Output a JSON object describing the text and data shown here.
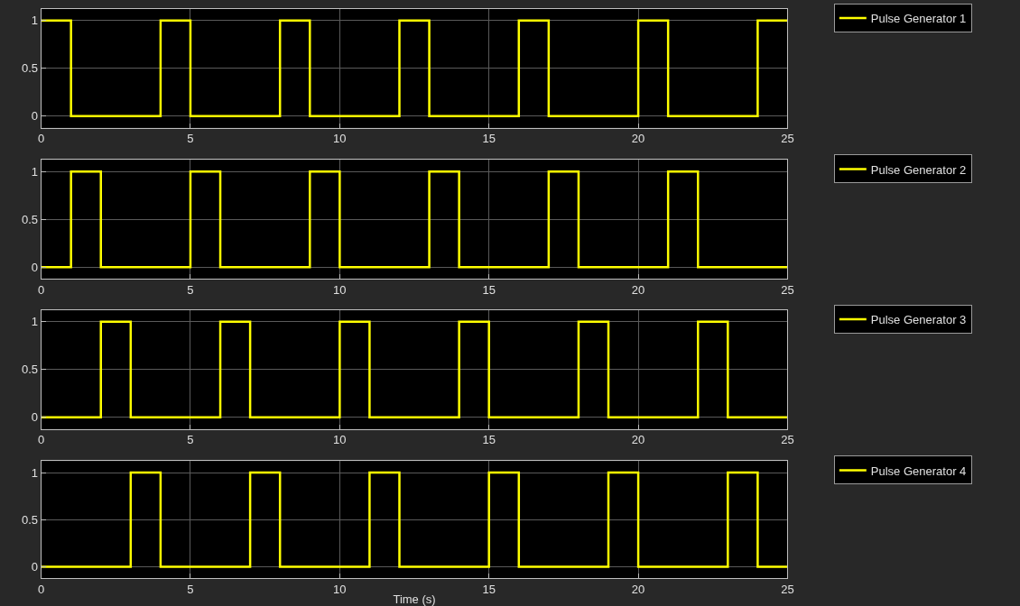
{
  "chart_data": [
    {
      "type": "step",
      "x": [
        0,
        1,
        4,
        5,
        8,
        9,
        12,
        13,
        16,
        17,
        20,
        21,
        24,
        25
      ],
      "xlim": [
        0,
        25
      ],
      "xticks": [
        0,
        5,
        10,
        15,
        20,
        25
      ],
      "ylim": [
        -0.12,
        1.12
      ],
      "yticks": [
        0,
        0.5,
        1
      ],
      "grid": true,
      "legend": "top right",
      "series": [
        {
          "name": "Pulse Generator 1",
          "color": "#ffff00",
          "values": [
            1,
            0,
            1,
            0,
            1,
            0,
            1,
            0,
            1,
            0,
            1,
            0,
            1,
            1
          ]
        }
      ]
    },
    {
      "type": "step",
      "x": [
        0,
        1,
        2,
        5,
        6,
        9,
        10,
        13,
        14,
        17,
        18,
        21,
        22,
        25
      ],
      "xlim": [
        0,
        25
      ],
      "xticks": [
        0,
        5,
        10,
        15,
        20,
        25
      ],
      "ylim": [
        -0.12,
        1.12
      ],
      "yticks": [
        0,
        0.5,
        1
      ],
      "grid": true,
      "legend": "top right",
      "series": [
        {
          "name": "Pulse Generator 2",
          "color": "#ffff00",
          "values": [
            0,
            1,
            0,
            1,
            0,
            1,
            0,
            1,
            0,
            1,
            0,
            1,
            0,
            0
          ]
        }
      ]
    },
    {
      "type": "step",
      "x": [
        0,
        2,
        3,
        6,
        7,
        10,
        11,
        14,
        15,
        18,
        19,
        22,
        23,
        25
      ],
      "xlim": [
        0,
        25
      ],
      "xticks": [
        0,
        5,
        10,
        15,
        20,
        25
      ],
      "ylim": [
        -0.12,
        1.12
      ],
      "yticks": [
        0,
        0.5,
        1
      ],
      "grid": true,
      "legend": "top right",
      "series": [
        {
          "name": "Pulse Generator 3",
          "color": "#ffff00",
          "values": [
            0,
            1,
            0,
            1,
            0,
            1,
            0,
            1,
            0,
            1,
            0,
            1,
            0,
            0
          ]
        }
      ]
    },
    {
      "type": "step",
      "x": [
        0,
        3,
        4,
        7,
        8,
        11,
        12,
        15,
        16,
        19,
        20,
        23,
        24,
        25
      ],
      "xlim": [
        0,
        25
      ],
      "xticks": [
        0,
        5,
        10,
        15,
        20,
        25
      ],
      "ylim": [
        -0.12,
        1.12
      ],
      "yticks": [
        0,
        0.5,
        1
      ],
      "grid": true,
      "legend": "top right",
      "xlabel": "Time (s)",
      "series": [
        {
          "name": "Pulse Generator 4",
          "color": "#ffff00",
          "values": [
            0,
            1,
            0,
            1,
            0,
            1,
            0,
            1,
            0,
            1,
            0,
            1,
            0,
            0
          ]
        }
      ]
    }
  ]
}
